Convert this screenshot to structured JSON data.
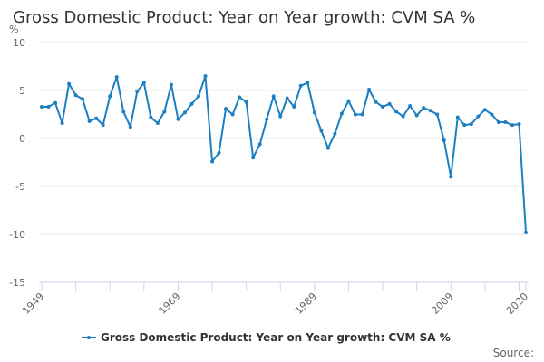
{
  "chart_data": {
    "type": "line",
    "title": "Gross Domestic Product: Year on Year growth: CVM SA %",
    "ylabel": "%",
    "xlabel": "",
    "ylim": [
      -15,
      10
    ],
    "yticks": [
      10,
      5,
      0,
      -5,
      -10,
      -15
    ],
    "xlim": [
      1949,
      2020
    ],
    "xtick_labels": [
      "1949",
      "1969",
      "1989",
      "2009",
      "2020"
    ],
    "xtick_marks_every": 5,
    "grid": true,
    "legend": {
      "position": "bottom-center",
      "entries": [
        "Gross Domestic Product: Year on Year growth: CVM SA %"
      ]
    },
    "source_label": "Source:",
    "line_color": "#1b7fc2",
    "x": [
      1949,
      1950,
      1951,
      1952,
      1953,
      1954,
      1955,
      1956,
      1957,
      1958,
      1959,
      1960,
      1961,
      1962,
      1963,
      1964,
      1965,
      1966,
      1967,
      1968,
      1969,
      1970,
      1971,
      1972,
      1973,
      1974,
      1975,
      1976,
      1977,
      1978,
      1979,
      1980,
      1981,
      1982,
      1983,
      1984,
      1985,
      1986,
      1987,
      1988,
      1989,
      1990,
      1991,
      1992,
      1993,
      1994,
      1995,
      1996,
      1997,
      1998,
      1999,
      2000,
      2001,
      2002,
      2003,
      2004,
      2005,
      2006,
      2007,
      2008,
      2009,
      2010,
      2011,
      2012,
      2013,
      2014,
      2015,
      2016,
      2017,
      2018,
      2019,
      2020
    ],
    "series": [
      {
        "name": "Gross Domestic Product: Year on Year growth: CVM SA %",
        "values": [
          3.3,
          3.3,
          3.7,
          1.6,
          5.7,
          4.5,
          4.1,
          1.8,
          2.1,
          1.4,
          4.4,
          6.4,
          2.8,
          1.2,
          4.9,
          5.8,
          2.2,
          1.6,
          2.8,
          5.6,
          2.0,
          2.7,
          3.6,
          4.4,
          6.5,
          -2.4,
          -1.5,
          3.1,
          2.5,
          4.3,
          3.8,
          -2.0,
          -0.6,
          2.0,
          4.4,
          2.3,
          4.2,
          3.3,
          5.5,
          5.8,
          2.7,
          0.8,
          -1.0,
          0.5,
          2.6,
          3.9,
          2.5,
          2.5,
          5.1,
          3.8,
          3.3,
          3.6,
          2.8,
          2.3,
          3.4,
          2.4,
          3.2,
          2.9,
          2.5,
          -0.2,
          -4.0,
          2.2,
          1.4,
          1.5,
          2.3,
          3.0,
          2.5,
          1.7,
          1.7,
          1.4,
          1.5,
          -9.8
        ]
      }
    ]
  }
}
